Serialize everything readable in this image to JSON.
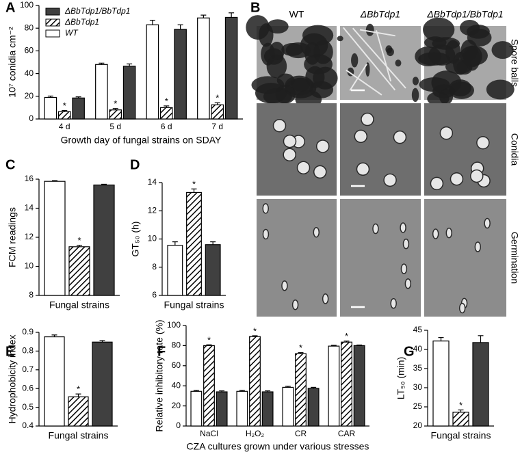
{
  "chart_data": [
    {
      "panel": "A",
      "type": "bar",
      "ylabel": "10⁷ conidia cm⁻²",
      "xlabel": "Growth day of fungal strains on SDAY",
      "categories": [
        "4 d",
        "5 d",
        "6 d",
        "7 d"
      ],
      "series": [
        {
          "name": "WT",
          "color": "#ffffff",
          "hatched": false,
          "values": [
            19,
            48,
            83,
            89
          ],
          "errors": [
            1.2,
            1.2,
            4,
            2.5
          ]
        },
        {
          "name": "ΔBbTdp1",
          "color": "#ffffff",
          "hatched": true,
          "values": [
            6.5,
            8,
            10,
            12.5
          ],
          "errors": [
            1,
            1.2,
            1.5,
            1.8
          ],
          "annotations": [
            "*",
            "*",
            "*",
            "*"
          ]
        },
        {
          "name": "ΔBbTdp1/BbTdp1",
          "color": "#404040",
          "hatched": false,
          "values": [
            18.5,
            46.5,
            79,
            89.5
          ],
          "errors": [
            1,
            2,
            4,
            4
          ]
        }
      ],
      "ylim": [
        0,
        100
      ],
      "yticks": [
        0,
        20,
        40,
        60,
        80,
        100
      ],
      "legend": "top-left"
    },
    {
      "panel": "B",
      "type": "image-grid",
      "columns": [
        "WT",
        "ΔBbTdp1",
        "ΔBbTdp1/BbTdp1"
      ],
      "rows": [
        "Spore balls",
        "Conidia",
        "Germination"
      ]
    },
    {
      "panel": "C",
      "type": "bar",
      "ylabel": "FCM readings",
      "xlabel": "Fungal strains",
      "values": [
        15.85,
        11.35,
        15.6
      ],
      "errors": [
        0.05,
        0.1,
        0.05
      ],
      "colors": [
        "#ffffff",
        "#ffffff",
        "#404040"
      ],
      "hatched": [
        false,
        true,
        false
      ],
      "annotations": [
        null,
        "*",
        null
      ],
      "ylim": [
        8,
        16
      ],
      "yticks": [
        8,
        10,
        12,
        14,
        16
      ]
    },
    {
      "panel": "D",
      "type": "bar",
      "ylabel": "GT₅₀ (h)",
      "xlabel": "Fungal strains",
      "values": [
        9.55,
        13.3,
        9.6
      ],
      "errors": [
        0.25,
        0.25,
        0.2
      ],
      "colors": [
        "#ffffff",
        "#ffffff",
        "#404040"
      ],
      "hatched": [
        false,
        true,
        false
      ],
      "annotations": [
        null,
        "*",
        null
      ],
      "ylim": [
        6,
        14
      ],
      "yticks": [
        6,
        8,
        10,
        12,
        14
      ]
    },
    {
      "panel": "E",
      "type": "bar",
      "ylabel": "Hydrophobicity index",
      "xlabel": "Fungal strains",
      "values": [
        0.876,
        0.556,
        0.848
      ],
      "errors": [
        0.01,
        0.015,
        0.008
      ],
      "colors": [
        "#ffffff",
        "#ffffff",
        "#404040"
      ],
      "hatched": [
        false,
        true,
        false
      ],
      "annotations": [
        null,
        "*",
        null
      ],
      "ylim": [
        0.4,
        0.9
      ],
      "yticks": [
        0.4,
        0.5,
        0.6,
        0.7,
        0.8,
        0.9
      ]
    },
    {
      "panel": "F",
      "type": "bar",
      "ylabel": "Relative inhibitory rate (%)",
      "xlabel": "CZA cultures grown under various stresses",
      "categories": [
        "NaCl",
        "H₂O₂",
        "CR",
        "CAR"
      ],
      "series": [
        {
          "color": "#ffffff",
          "hatched": false,
          "values": [
            34.5,
            34.5,
            38.5,
            79.5
          ],
          "errors": [
            1,
            1,
            1,
            0.8
          ]
        },
        {
          "color": "#ffffff",
          "hatched": true,
          "values": [
            80,
            89,
            72,
            83.5
          ],
          "errors": [
            0.8,
            0.8,
            1,
            1
          ],
          "annotations": [
            "*",
            "*",
            "*",
            "*"
          ]
        },
        {
          "color": "#404040",
          "hatched": false,
          "values": [
            34,
            34,
            37.5,
            80
          ],
          "errors": [
            1,
            1,
            1,
            0.6
          ]
        }
      ],
      "ylim": [
        0,
        100
      ],
      "yticks": [
        0,
        20,
        40,
        60,
        80,
        100
      ]
    },
    {
      "panel": "G",
      "type": "bar",
      "ylabel": "LT₅₀ (min)",
      "xlabel": "Fungal strains",
      "values": [
        42.2,
        23.6,
        41.8
      ],
      "errors": [
        0.9,
        0.6,
        1.8
      ],
      "colors": [
        "#ffffff",
        "#ffffff",
        "#404040"
      ],
      "hatched": [
        false,
        true,
        false
      ],
      "annotations": [
        null,
        "*",
        null
      ],
      "ylim": [
        20,
        45
      ],
      "yticks": [
        20,
        25,
        30,
        35,
        40,
        45
      ]
    }
  ]
}
